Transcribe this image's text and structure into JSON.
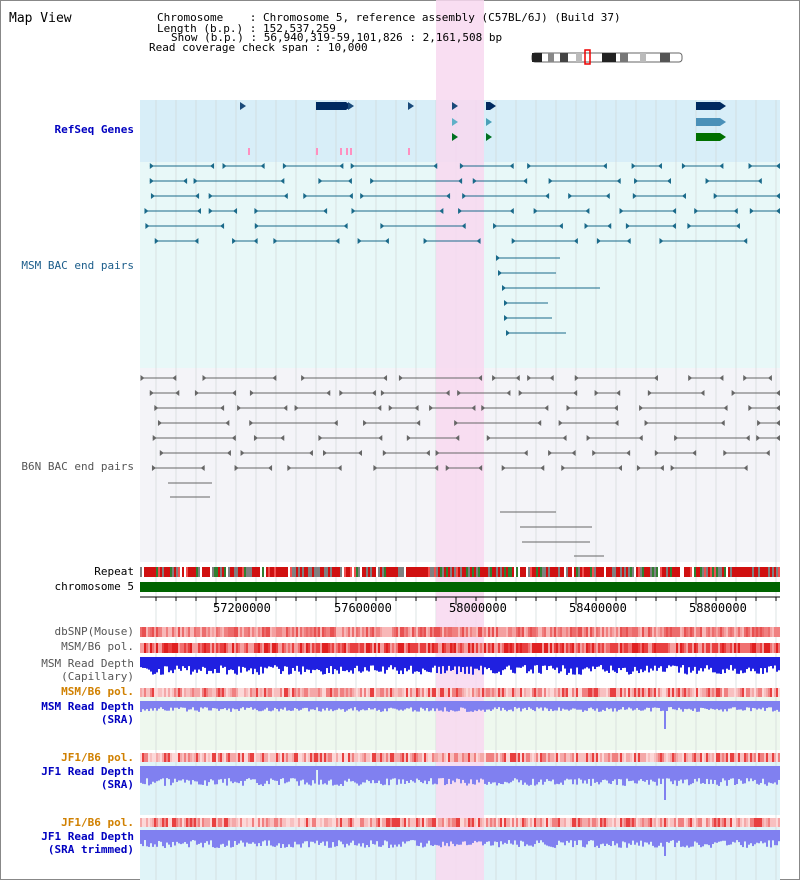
{
  "header": {
    "title": "Map View",
    "chromosome_label": "Chromosome    ",
    "chromosome_value": "Chromosome 5, reference assembly (C57BL/6J) (Build 37)",
    "length_label": "Length (b.p.)",
    "length_value": "152,537,259",
    "show_label": "Show (b.p.)",
    "show_value": "56,940,319-59,101,826 : 2,161,508 bp",
    "coverage_label": "Read coverage check span",
    "coverage_value": "10,000"
  },
  "tracks": {
    "refseq": "RefSeq Genes",
    "msm_bac": "MSM BAC end pairs",
    "b6n_bac": "B6N BAC end pairs",
    "repeat": "Repeat",
    "chromosome": "chromosome 5",
    "dbsnp": "dbSNP(Mouse)",
    "msm_b6_pol_1": "MSM/B6 pol.",
    "msm_read_depth_cap_1": "MSM Read Depth",
    "msm_read_depth_cap_2": "(Capillary)",
    "msm_b6_pol_2": "MSM/B6 pol.",
    "msm_read_depth_sra_1": "MSM Read Depth",
    "msm_read_depth_sra_2": "(SRA)",
    "jf1_b6_pol_1": "JF1/B6 pol.",
    "jf1_read_depth_sra_1": "JF1 Read Depth",
    "jf1_read_depth_sra_2": "(SRA)",
    "jf1_b6_pol_2": "JF1/B6 pol.",
    "jf1_read_depth_trim_1": "JF1 Read Depth",
    "jf1_read_depth_trim_2": "(SRA trimmed)"
  },
  "axis": {
    "ticks": [
      "57200000",
      "57600000",
      "58000000",
      "58400000",
      "58800000"
    ]
  },
  "colors": {
    "highlight": "#f8d8f0",
    "refseq_bg": "#d8eef8",
    "msm_bg": "#e8f8f8",
    "b6n_bg": "#f4f4f8",
    "chrom_bar": "#006400",
    "depth_blue": "#2020e0",
    "depth_light": "#8080f0"
  }
}
